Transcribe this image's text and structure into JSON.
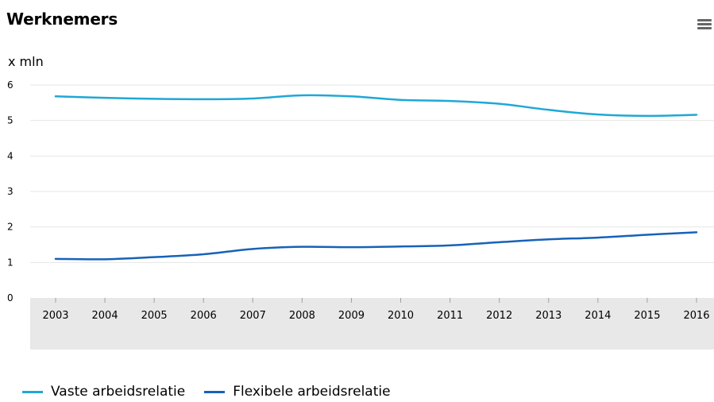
{
  "title": "Werknemers",
  "menu_icon": "hamburger-menu-icon",
  "colors": {
    "vaste": "#1fa8d6",
    "flexibele": "#1762b8",
    "grid": "#e6e6e6",
    "axis_band": "#e8e8e8"
  },
  "chart_data": {
    "type": "line",
    "title": "Werknemers",
    "ylabel": "x mln",
    "xlabel": "",
    "ylim": [
      0,
      6
    ],
    "yticks": [
      0,
      1,
      2,
      3,
      4,
      5,
      6
    ],
    "x": [
      "2003",
      "2004",
      "2005",
      "2006",
      "2007",
      "2008",
      "2009",
      "2010",
      "2011",
      "2012",
      "2013",
      "2014",
      "2015",
      "2016"
    ],
    "grid": true,
    "legend_position": "bottom-left",
    "series": [
      {
        "name": "Vaste arbeidsrelatie",
        "color": "#1fa8d6",
        "values": [
          5.68,
          5.64,
          5.61,
          5.6,
          5.62,
          5.71,
          5.68,
          5.58,
          5.55,
          5.47,
          5.3,
          5.17,
          5.13,
          5.16
        ]
      },
      {
        "name": "Flexibele arbeidsrelatie",
        "color": "#1762b8",
        "values": [
          1.1,
          1.09,
          1.15,
          1.23,
          1.38,
          1.44,
          1.43,
          1.45,
          1.48,
          1.57,
          1.65,
          1.7,
          1.78,
          1.85
        ]
      }
    ]
  }
}
